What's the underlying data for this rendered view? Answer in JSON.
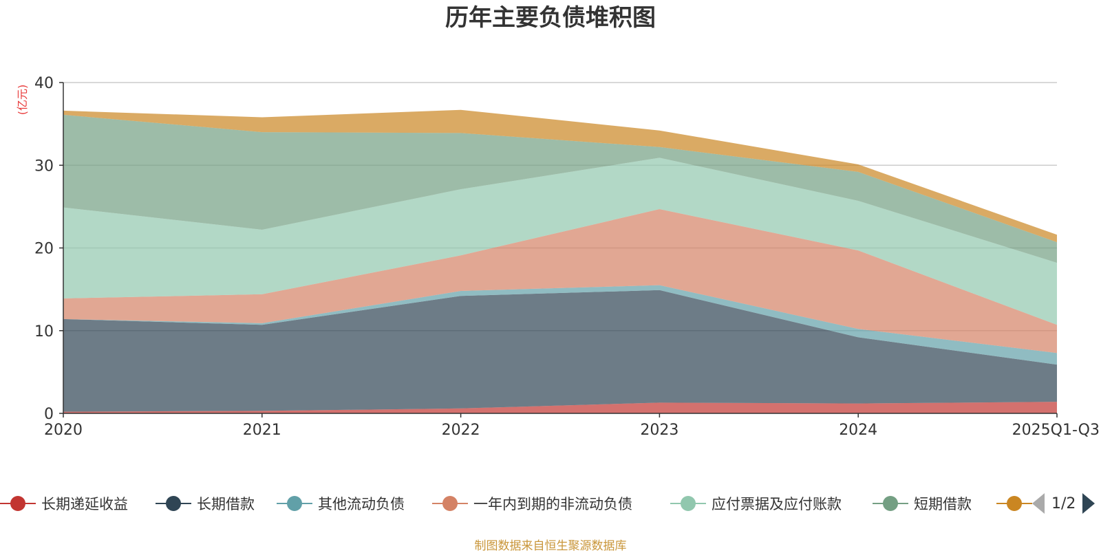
{
  "chart_data": {
    "type": "area",
    "stacked": true,
    "title": "历年主要负债堆积图",
    "ylabel": "(亿元)",
    "categories": [
      "2020",
      "2021",
      "2022",
      "2023",
      "2024",
      "2025Q1-Q3"
    ],
    "ylim": [
      0,
      40
    ],
    "yticks": [
      0,
      10,
      20,
      30,
      40
    ],
    "grid": true,
    "series": [
      {
        "name": "长期递延收益",
        "color": "#c23531",
        "values": [
          0.2,
          0.3,
          0.6,
          1.3,
          1.2,
          1.4
        ]
      },
      {
        "name": "长期借款",
        "color": "#2f4554",
        "values": [
          11.2,
          10.4,
          13.6,
          13.6,
          8.0,
          4.5
        ]
      },
      {
        "name": "其他流动负债",
        "color": "#61a0a8",
        "values": [
          0.0,
          0.2,
          0.6,
          0.6,
          1.0,
          1.4
        ]
      },
      {
        "name": "一年内到期的非流动负债",
        "color": "#d48265",
        "values": [
          2.5,
          3.5,
          4.3,
          9.2,
          9.5,
          3.4
        ]
      },
      {
        "name": "应付票据及应付账款",
        "color": "#91c7ae",
        "values": [
          11.0,
          7.8,
          8.0,
          6.2,
          6.0,
          7.5
        ]
      },
      {
        "name": "短期借款",
        "color": "#749f83",
        "values": [
          11.2,
          11.8,
          6.8,
          1.3,
          3.5,
          2.5
        ]
      },
      {
        "name": "",
        "color": "#ca8622",
        "values": [
          0.5,
          1.8,
          2.8,
          2.0,
          0.9,
          0.9
        ]
      }
    ]
  },
  "legend": {
    "page_text": "1/2"
  },
  "source_text": "制图数据来自恒生聚源数据库"
}
